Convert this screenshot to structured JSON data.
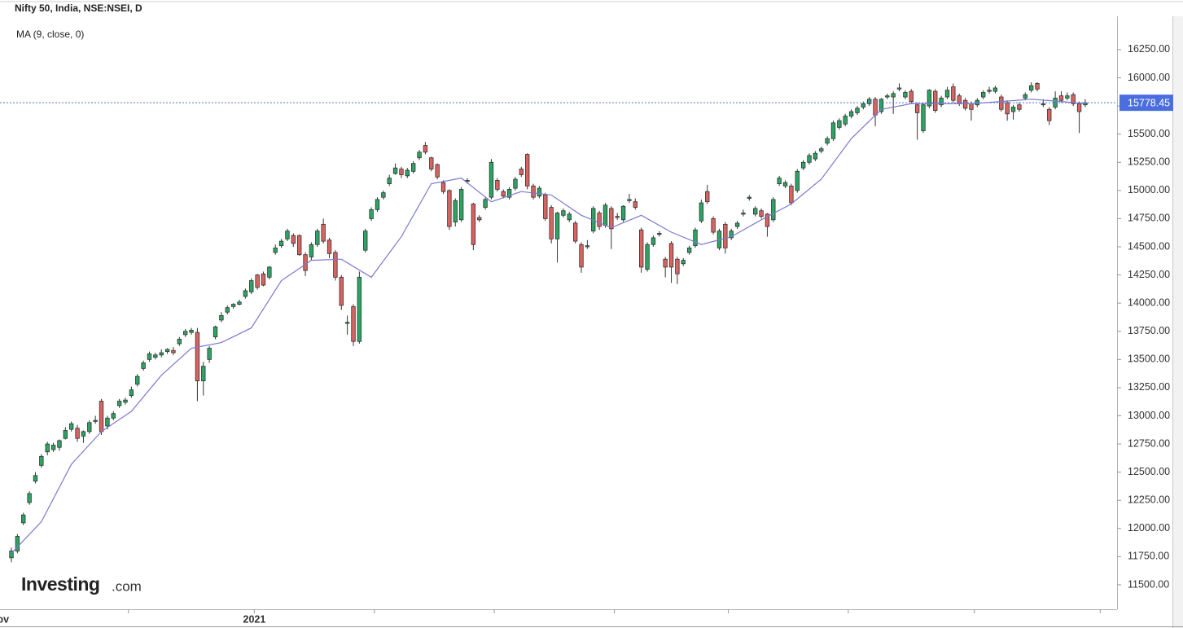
{
  "chart_data": {
    "type": "candlestick",
    "title": "Nifty 50, India, NSE:NSEI, D",
    "indicator_label": "MA (9, close, 0)",
    "logo": {
      "name": "Investing",
      "suffix": ".com"
    },
    "up_color": "#26a862",
    "down_color": "#e0605e",
    "open": [
      11740,
      11800,
      12050,
      12230,
      12420,
      12560,
      12680,
      12700,
      12720,
      12800,
      12880,
      12890,
      12820,
      12860,
      12950,
      13130,
      12910,
      12980,
      13090,
      13120,
      13180,
      13280,
      13420,
      13500,
      13520,
      13540,
      13570,
      13580,
      13640,
      13720,
      13740,
      13740,
      13310,
      13500,
      13700,
      13850,
      13920,
      13970,
      13990,
      14060,
      14100,
      14250,
      14260,
      14230,
      14450,
      14510,
      14570,
      14600,
      14600,
      14430,
      14410,
      14520,
      14700,
      14560,
      14450,
      14230,
      13820,
      13970,
      13660,
      14470,
      14750,
      14830,
      14940,
      15060,
      15150,
      15190,
      15130,
      15170,
      15290,
      15400,
      15290,
      15230,
      15070,
      15000,
      14720,
      14740,
      15080,
      14880,
      14760,
      14850,
      14940,
      15090,
      14990,
      14940,
      15020,
      15190,
      15320,
      15040,
      14950,
      14960,
      14850,
      14570,
      14780,
      14740,
      14710,
      14520,
      14500,
      14640,
      14800,
      14690,
      14840,
      14770,
      14740,
      14910,
      14900,
      14650,
      14300,
      14520,
      14610,
      14390,
      14530,
      14390,
      14350,
      14450,
      14510,
      14730,
      14990,
      14750,
      14490,
      14700,
      14580,
      14680,
      14790,
      14930,
      14790,
      14820,
      14790,
      14740,
      15060,
      15040,
      15040,
      15000,
      15200,
      15250,
      15280,
      15350,
      15420,
      15460,
      15560,
      15590,
      15660,
      15690,
      15740,
      15770,
      15810,
      15700,
      15830,
      15830,
      15900,
      15830,
      15880,
      15760,
      15530,
      15750,
      15880,
      15760,
      15830,
      15920,
      15840,
      15800,
      15770,
      15760,
      15830,
      15880,
      15880,
      15830,
      15780,
      15700,
      15760,
      15820,
      15890,
      15950,
      15760,
      15720,
      15740,
      15840,
      15820,
      15850,
      15770,
      15760
    ],
    "high": [
      11830,
      11950,
      12140,
      12330,
      12500,
      12660,
      12770,
      12760,
      12790,
      12900,
      12950,
      12920,
      12870,
      12960,
      13000,
      13150,
      13000,
      13040,
      13150,
      13160,
      13260,
      13370,
      13490,
      13570,
      13560,
      13590,
      13600,
      13610,
      13700,
      13770,
      13780,
      13780,
      13480,
      13620,
      13800,
      13920,
      13980,
      14000,
      14030,
      14130,
      14220,
      14260,
      14280,
      14330,
      14520,
      14570,
      14660,
      14620,
      14610,
      14450,
      14540,
      14660,
      14750,
      14580,
      14470,
      14250,
      13890,
      13990,
      14280,
      14660,
      14850,
      14940,
      15000,
      15140,
      15240,
      15210,
      15200,
      15260,
      15360,
      15430,
      15300,
      15240,
      15090,
      15010,
      14930,
      15030,
      15110,
      14890,
      14780,
      14940,
      15280,
      15110,
      15010,
      15030,
      15120,
      15210,
      15330,
      15060,
      15040,
      14980,
      14870,
      14810,
      14840,
      14810,
      14730,
      14540,
      14560,
      14860,
      14820,
      14890,
      14860,
      14800,
      14870,
      14970,
      14930,
      14670,
      14540,
      14600,
      14640,
      14410,
      14550,
      14410,
      14400,
      14510,
      14670,
      14920,
      15050,
      14770,
      14660,
      14720,
      14660,
      14730,
      14830,
      14960,
      14860,
      14840,
      14800,
      14940,
      15130,
      15090,
      15060,
      15190,
      15270,
      15330,
      15350,
      15390,
      15480,
      15620,
      15640,
      15680,
      15720,
      15750,
      15790,
      15830,
      15830,
      15820,
      15860,
      15880,
      15950,
      15890,
      15900,
      15780,
      15780,
      15900,
      15900,
      15840,
      15920,
      15950,
      15860,
      15820,
      15790,
      15820,
      15890,
      15920,
      15930,
      15850,
      15800,
      15760,
      15780,
      15870,
      15960,
      15960,
      15810,
      15740,
      15880,
      15880,
      15870,
      15870,
      15790,
      15810
    ],
    "low": [
      11700,
      11780,
      12030,
      12210,
      12400,
      12540,
      12650,
      12680,
      12690,
      12790,
      12860,
      12770,
      12760,
      12840,
      12930,
      12830,
      12880,
      12960,
      13070,
      13100,
      13160,
      13260,
      13400,
      13480,
      13500,
      13520,
      13550,
      13540,
      13620,
      13700,
      13720,
      13130,
      13180,
      13470,
      13680,
      13830,
      13900,
      13950,
      13980,
      14040,
      14080,
      14120,
      14150,
      14210,
      14430,
      14490,
      14550,
      14500,
      14420,
      14240,
      14380,
      14500,
      14530,
      14400,
      14200,
      13940,
      13720,
      13620,
      13640,
      14450,
      14730,
      14810,
      14920,
      15040,
      15140,
      15110,
      15110,
      15150,
      15270,
      15320,
      15170,
      15100,
      14970,
      14650,
      14680,
      14720,
      15060,
      14470,
      14720,
      14830,
      14920,
      14990,
      14930,
      14920,
      15000,
      15120,
      15010,
      14920,
      14930,
      14730,
      14530,
      14360,
      14760,
      14720,
      14530,
      14270,
      14480,
      14620,
      14650,
      14670,
      14480,
      14740,
      14720,
      14890,
      14830,
      14270,
      14280,
      14500,
      14590,
      14230,
      14180,
      14170,
      14330,
      14430,
      14490,
      14710,
      14880,
      14610,
      14470,
      14440,
      14560,
      14660,
      14770,
      14910,
      14770,
      14750,
      14590,
      14720,
      15040,
      15020,
      14870,
      14980,
      15180,
      15230,
      15260,
      15330,
      15400,
      15440,
      15540,
      15570,
      15640,
      15670,
      15720,
      15750,
      15570,
      15680,
      15810,
      15680,
      15880,
      15810,
      15770,
      15450,
      15510,
      15730,
      15690,
      15740,
      15810,
      15780,
      15750,
      15710,
      15620,
      15740,
      15810,
      15860,
      15860,
      15700,
      15620,
      15630,
      15700,
      15800,
      15870,
      15880,
      15740,
      15580,
      15720,
      15780,
      15800,
      15750,
      15510,
      15740
    ],
    "close": [
      11800,
      11930,
      12120,
      12310,
      12470,
      12640,
      12750,
      12740,
      12780,
      12870,
      12930,
      12800,
      12860,
      12940,
      12960,
      12860,
      12980,
      13020,
      13130,
      13140,
      13230,
      13350,
      13470,
      13550,
      13540,
      13560,
      13590,
      13560,
      13680,
      13750,
      13760,
      13310,
      13440,
      13600,
      13790,
      13890,
      13960,
      13990,
      14010,
      14110,
      14200,
      14140,
      14160,
      14320,
      14490,
      14550,
      14640,
      14530,
      14430,
      14290,
      14520,
      14640,
      14550,
      14440,
      14230,
      13980,
      13830,
      13660,
      14230,
      14640,
      14830,
      14920,
      14980,
      15110,
      15200,
      15140,
      15180,
      15240,
      15340,
      15340,
      15190,
      15120,
      14990,
      14680,
      14910,
      15010,
      15090,
      14520,
      14740,
      14920,
      15250,
      15010,
      14950,
      15010,
      15100,
      15140,
      15040,
      14940,
      15020,
      14750,
      14570,
      14800,
      14820,
      14790,
      14550,
      14320,
      14510,
      14840,
      14680,
      14870,
      14660,
      14760,
      14860,
      14920,
      14850,
      14320,
      14520,
      14580,
      14620,
      14320,
      14320,
      14260,
      14380,
      14490,
      14650,
      14890,
      14900,
      14630,
      14640,
      14490,
      14640,
      14710,
      14800,
      14940,
      14840,
      14770,
      14680,
      14920,
      15110,
      15070,
      14890,
      15170,
      15250,
      15310,
      15330,
      15370,
      15460,
      15600,
      15620,
      15660,
      15700,
      15730,
      15770,
      15810,
      15670,
      15810,
      15840,
      15860,
      15910,
      15870,
      15790,
      15690,
      15760,
      15890,
      15710,
      15820,
      15890,
      15800,
      15770,
      15730,
      15720,
      15800,
      15870,
      15890,
      15910,
      15720,
      15680,
      15740,
      15720,
      15850,
      15930,
      15900,
      15770,
      15620,
      15820,
      15800,
      15840,
      15770,
      15700,
      15778.45
    ],
    "ma": {
      "color": "#7b79d0",
      "x": [
        0,
        5,
        10,
        15,
        20,
        25,
        30,
        35,
        40,
        45,
        50,
        55,
        60,
        65,
        70,
        75,
        80,
        85,
        90,
        95,
        100,
        105,
        110,
        115,
        120,
        125,
        130,
        135,
        140,
        145,
        150,
        155,
        160,
        165,
        170,
        175,
        179
      ],
      "values": [
        11780,
        12060,
        12570,
        12860,
        13040,
        13360,
        13600,
        13650,
        13780,
        14200,
        14380,
        14390,
        14230,
        14590,
        15060,
        15110,
        14900,
        14990,
        14960,
        14780,
        14670,
        14780,
        14630,
        14520,
        14590,
        14740,
        14880,
        15100,
        15460,
        15720,
        15770,
        15770,
        15770,
        15790,
        15810,
        15790,
        15770
      ]
    },
    "xlim": [
      -1.9,
      184.3
    ],
    "xticks": [
      {
        "value": -2,
        "label": "Nov"
      },
      {
        "value": 19.5,
        "label": null
      },
      {
        "value": 40.5,
        "label": "2021"
      },
      {
        "value": 60.5,
        "label": null
      },
      {
        "value": 80.5,
        "label": null
      },
      {
        "value": 100.5,
        "label": null
      },
      {
        "value": 119.5,
        "label": null
      },
      {
        "value": 139.5,
        "label": null
      },
      {
        "value": 160.5,
        "label": null
      },
      {
        "value": 181.5,
        "label": null
      }
    ],
    "ylim": [
      11283,
      16546
    ],
    "yticks": [
      {
        "value": 11500,
        "label": "11500.00"
      },
      {
        "value": 11750,
        "label": "11750.00"
      },
      {
        "value": 12000,
        "label": "12000.00"
      },
      {
        "value": 12250,
        "label": "12250.00"
      },
      {
        "value": 12500,
        "label": "12500.00"
      },
      {
        "value": 12750,
        "label": "12750.00"
      },
      {
        "value": 13000,
        "label": "13000.00"
      },
      {
        "value": 13250,
        "label": "13250.00"
      },
      {
        "value": 13500,
        "label": "13500.00"
      },
      {
        "value": 13750,
        "label": "13750.00"
      },
      {
        "value": 14000,
        "label": "14000.00"
      },
      {
        "value": 14250,
        "label": "14250.00"
      },
      {
        "value": 14500,
        "label": "14500.00"
      },
      {
        "value": 14750,
        "label": "14750.00"
      },
      {
        "value": 15000,
        "label": "15000.00"
      },
      {
        "value": 15250,
        "label": "15250.00"
      },
      {
        "value": 15500,
        "label": "15500.00"
      },
      {
        "value": 15750,
        "label": "15750.00"
      },
      {
        "value": 16000,
        "label": "16000.00"
      },
      {
        "value": 16250,
        "label": "16250.00"
      }
    ]
  }
}
